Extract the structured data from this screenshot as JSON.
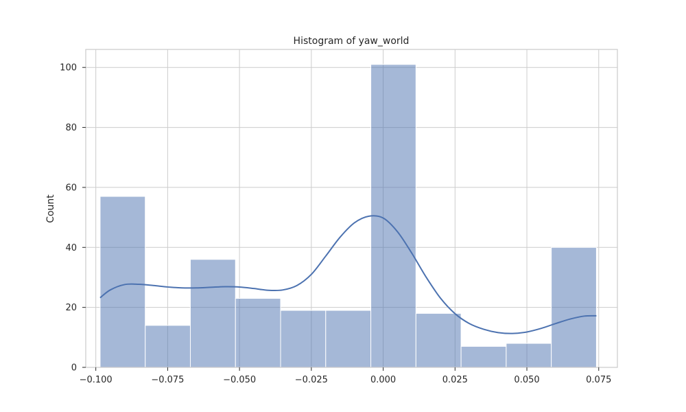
{
  "chart_data": {
    "type": "bar",
    "subtype": "histogram",
    "title": "Histogram of yaw_world",
    "xlabel": "",
    "ylabel": "Count",
    "xlim": [
      -0.1035,
      0.0815
    ],
    "ylim": [
      0,
      106
    ],
    "grid": true,
    "x_ticks": [
      -0.1,
      -0.075,
      -0.05,
      -0.025,
      0.0,
      0.025,
      0.05,
      0.075
    ],
    "x_tick_labels": [
      "−0.100",
      "−0.075",
      "−0.050",
      "−0.025",
      "0.000",
      "0.025",
      "0.050",
      "0.075"
    ],
    "y_ticks": [
      0,
      20,
      40,
      60,
      80,
      100
    ],
    "y_tick_labels": [
      "0",
      "20",
      "40",
      "60",
      "80",
      "100"
    ],
    "bins": [
      {
        "x0": -0.0985,
        "x1": -0.0828,
        "count": 57
      },
      {
        "x0": -0.0828,
        "x1": -0.0671,
        "count": 14
      },
      {
        "x0": -0.0671,
        "x1": -0.0514,
        "count": 36
      },
      {
        "x0": -0.0514,
        "x1": -0.0357,
        "count": 23
      },
      {
        "x0": -0.0357,
        "x1": -0.02,
        "count": 19
      },
      {
        "x0": -0.02,
        "x1": -0.0043,
        "count": 19
      },
      {
        "x0": -0.0043,
        "x1": 0.0114,
        "count": 101
      },
      {
        "x0": 0.0114,
        "x1": 0.0271,
        "count": 18
      },
      {
        "x0": 0.0271,
        "x1": 0.0428,
        "count": 7
      },
      {
        "x0": 0.0428,
        "x1": 0.0585,
        "count": 8
      },
      {
        "x0": 0.0585,
        "x1": 0.0742,
        "count": 40
      }
    ],
    "kde": {
      "x": [
        -0.0985,
        -0.095,
        -0.09,
        -0.085,
        -0.08,
        -0.075,
        -0.07,
        -0.065,
        -0.06,
        -0.055,
        -0.05,
        -0.045,
        -0.04,
        -0.035,
        -0.03,
        -0.025,
        -0.02,
        -0.015,
        -0.01,
        -0.005,
        0.0,
        0.005,
        0.01,
        0.015,
        0.02,
        0.025,
        0.03,
        0.035,
        0.04,
        0.045,
        0.05,
        0.055,
        0.06,
        0.065,
        0.07,
        0.0742
      ],
      "y": [
        23.2,
        25.8,
        27.6,
        27.7,
        27.3,
        26.8,
        26.5,
        26.5,
        26.7,
        26.9,
        26.8,
        26.3,
        25.7,
        25.8,
        27.3,
        31.0,
        37.1,
        43.4,
        48.2,
        50.4,
        49.8,
        45.2,
        38.0,
        30.0,
        23.0,
        17.9,
        14.6,
        12.7,
        11.6,
        11.3,
        11.8,
        13.0,
        14.6,
        16.1,
        17.1,
        17.2
      ]
    },
    "colors": {
      "bar_fill": "#4c72b0",
      "bar_opacity": 0.5,
      "kde_line": "#4c72b0"
    }
  }
}
